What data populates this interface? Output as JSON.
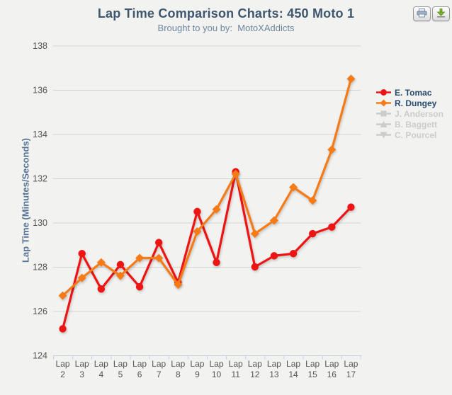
{
  "header": {
    "title": "Lap Time Comparison Charts: 450 Moto 1",
    "subtitle": "Brought to you by:  MotoXAddicts"
  },
  "toolbar": {
    "buttons": [
      {
        "name": "print",
        "icon": "printer-icon"
      },
      {
        "name": "download",
        "icon": "download-icon"
      }
    ]
  },
  "colors": {
    "background": "#f2f2f0",
    "title": "#3e576f",
    "subtitle": "#6d869f",
    "axis_title": "#557397",
    "axis_labels": "#555555",
    "grid": "#d4d4d4",
    "axis_line": "#c0d0e0",
    "legend_active": "#274b6d",
    "legend_disabled": "#cccccc",
    "tomac_red": "#ee1414",
    "dungey_orange": "#f67b17"
  },
  "chart_data": {
    "type": "line",
    "title": "Lap Time Comparison Charts: 450 Moto 1",
    "subtitle": "Brought to you by:  MotoXAddicts",
    "xlabel": "",
    "ylabel": "Lap Time (Minutes/Seconds)",
    "ylim": [
      124,
      138
    ],
    "ytick_step": 2,
    "grid": true,
    "legend_position": "right",
    "categories": [
      "Lap 2",
      "Lap 3",
      "Lap 4",
      "Lap 5",
      "Lap 6",
      "Lap 7",
      "Lap 8",
      "Lap 9",
      "Lap 10",
      "Lap 11",
      "Lap 12",
      "Lap 13",
      "Lap 14",
      "Lap 15",
      "Lap 16",
      "Lap 17"
    ],
    "series": [
      {
        "name": "E. Tomac",
        "marker": "circle",
        "color": "#ee1414",
        "enabled": true,
        "values": [
          125.2,
          128.6,
          127.0,
          128.1,
          127.1,
          129.1,
          127.3,
          130.5,
          128.2,
          132.3,
          128.0,
          128.5,
          128.6,
          129.5,
          129.8,
          130.7
        ]
      },
      {
        "name": "R. Dungey",
        "marker": "diamond",
        "color": "#f67b17",
        "enabled": true,
        "values": [
          126.7,
          127.5,
          128.2,
          127.6,
          128.4,
          128.4,
          127.2,
          129.6,
          130.6,
          132.2,
          129.5,
          130.1,
          131.6,
          131.0,
          133.3,
          136.5
        ]
      },
      {
        "name": "J. Anderson",
        "marker": "square",
        "color": "#cccccc",
        "enabled": false,
        "values": []
      },
      {
        "name": "B. Baggett",
        "marker": "triangle",
        "color": "#cccccc",
        "enabled": false,
        "values": []
      },
      {
        "name": "C. Pourcel",
        "marker": "triangle-down",
        "color": "#cccccc",
        "enabled": false,
        "values": []
      }
    ]
  }
}
